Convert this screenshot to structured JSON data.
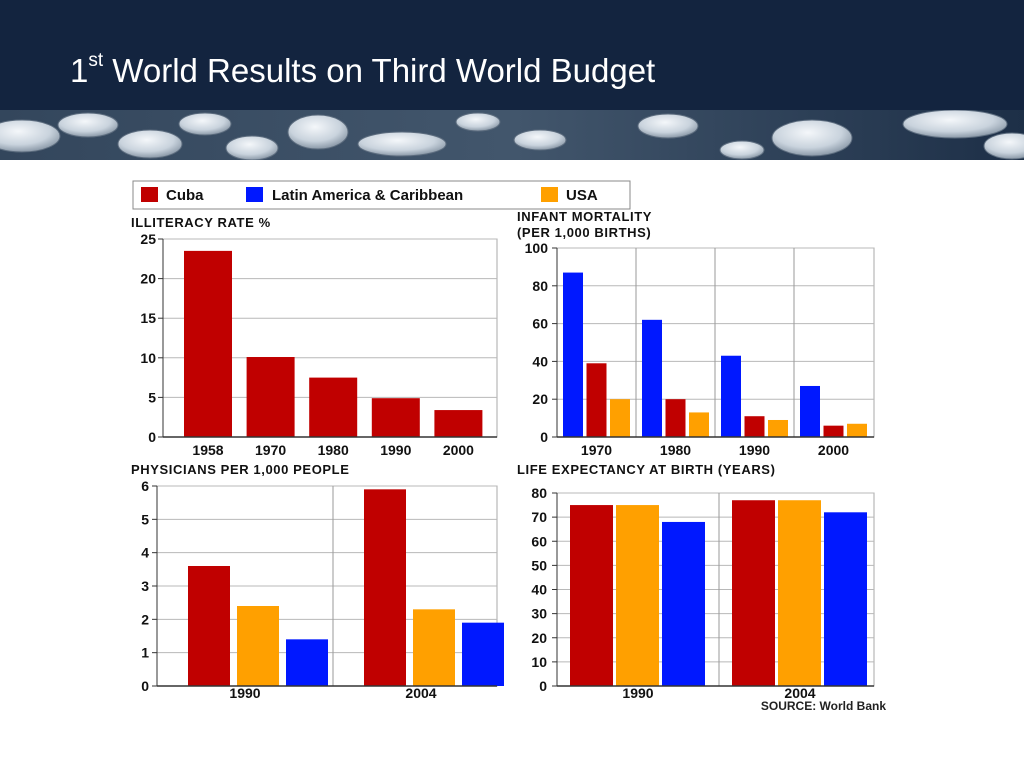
{
  "slide": {
    "title_number": "1",
    "title_suffix": "st",
    "title_rest": " World Results on Third World Budget"
  },
  "legend": [
    {
      "label": "Cuba",
      "color": "#c00000"
    },
    {
      "label": "Latin America & Caribbean",
      "color": "#0018ff"
    },
    {
      "label": "USA",
      "color": "#ffa000"
    }
  ],
  "source": "SOURCE: World Bank",
  "chart_data": [
    {
      "type": "bar",
      "title": "ILLITERACY RATE %",
      "categories": [
        "1958",
        "1970",
        "1980",
        "1990",
        "2000"
      ],
      "series": [
        {
          "name": "Cuba",
          "values": [
            23.5,
            10.1,
            7.5,
            4.9,
            3.4
          ]
        }
      ],
      "ylim": [
        0,
        25
      ],
      "yticks": [
        0,
        5,
        10,
        15,
        20,
        25
      ],
      "grid": true
    },
    {
      "type": "bar",
      "title": "INFANT MORTALITY",
      "subtitle": "(PER 1,000 BIRTHS)",
      "categories": [
        "1970",
        "1980",
        "1990",
        "2000"
      ],
      "series": [
        {
          "name": "Latin America & Caribbean",
          "values": [
            87,
            62,
            43,
            27
          ]
        },
        {
          "name": "Cuba",
          "values": [
            39,
            20,
            11,
            6
          ]
        },
        {
          "name": "USA",
          "values": [
            20,
            13,
            9,
            7
          ]
        }
      ],
      "ylim": [
        0,
        100
      ],
      "yticks": [
        0,
        20,
        40,
        60,
        80,
        100
      ],
      "grid": true
    },
    {
      "type": "bar",
      "title": "PHYSICIANS PER 1,000 PEOPLE",
      "categories": [
        "1990",
        "2004"
      ],
      "series": [
        {
          "name": "Cuba",
          "values": [
            3.6,
            5.9
          ]
        },
        {
          "name": "USA",
          "values": [
            2.4,
            2.3
          ]
        },
        {
          "name": "Latin America & Caribbean",
          "values": [
            1.4,
            1.9
          ]
        }
      ],
      "ylim": [
        0,
        6
      ],
      "yticks": [
        0,
        1,
        2,
        3,
        4,
        5,
        6
      ],
      "grid": true
    },
    {
      "type": "bar",
      "title": "LIFE EXPECTANCY AT BIRTH (YEARS)",
      "categories": [
        "1990",
        "2004"
      ],
      "series": [
        {
          "name": "Cuba",
          "values": [
            75,
            77
          ]
        },
        {
          "name": "USA",
          "values": [
            75,
            77
          ]
        },
        {
          "name": "Latin America & Caribbean",
          "values": [
            68,
            72
          ]
        }
      ],
      "ylim": [
        0,
        80
      ],
      "yticks": [
        0,
        10,
        20,
        30,
        40,
        50,
        60,
        70,
        80
      ],
      "grid": true
    }
  ]
}
